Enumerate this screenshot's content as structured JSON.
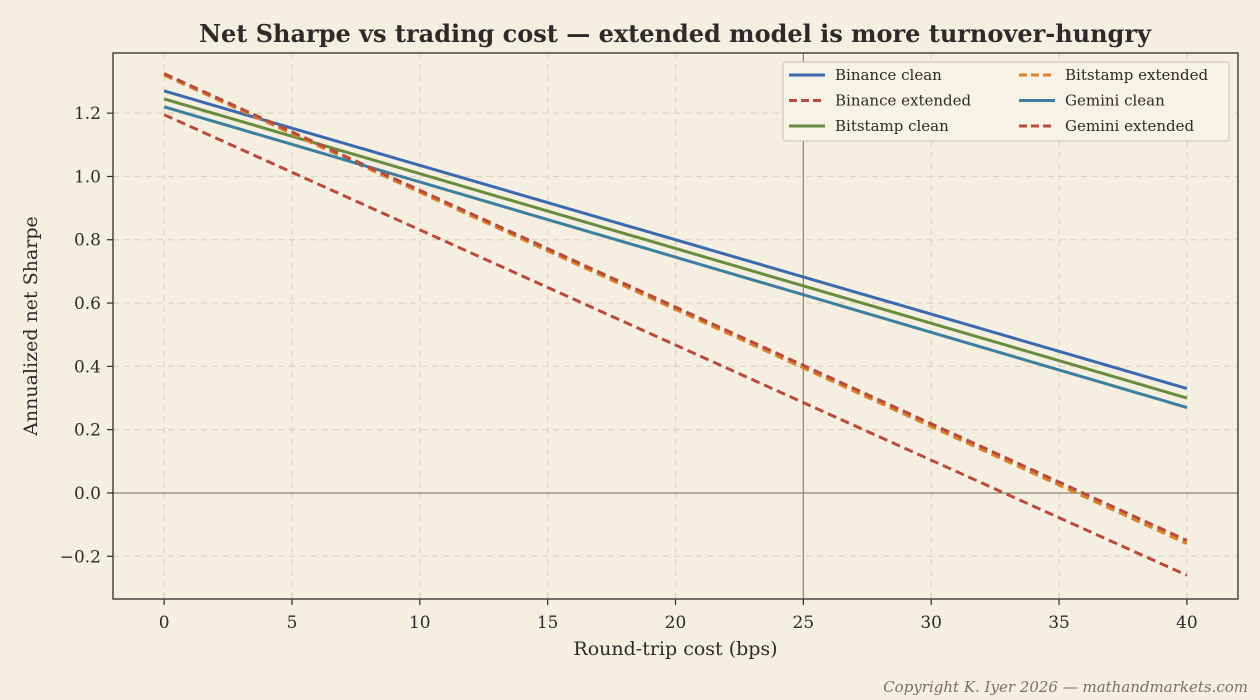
{
  "chart_data": {
    "type": "line",
    "title": "Net Sharpe vs trading cost — extended model is more turnover-hungry",
    "xlabel": "Round-trip cost (bps)",
    "ylabel": "Annualized net Sharpe",
    "xlim": [
      -2,
      42
    ],
    "ylim": [
      -0.335,
      1.39
    ],
    "xticks": [
      0,
      5,
      10,
      15,
      20,
      25,
      30,
      35,
      40
    ],
    "xtick_labels": [
      "0",
      "5",
      "10",
      "15",
      "20",
      "25",
      "30",
      "35",
      "40"
    ],
    "yticks": [
      -0.2,
      0.0,
      0.2,
      0.4,
      0.6,
      0.8,
      1.0,
      1.2
    ],
    "ytick_labels": [
      "−0.2",
      "0.0",
      "0.2",
      "0.4",
      "0.6",
      "0.8",
      "1.0",
      "1.2"
    ],
    "grid": true,
    "legend_position": "top-right",
    "reference_lines": {
      "horizontal_y": 0.0,
      "vertical_x": 25
    },
    "x": [
      0,
      40
    ],
    "series": [
      {
        "name": "Binance clean",
        "values": [
          1.27,
          0.33
        ],
        "color": "#3a6aad",
        "style": "solid"
      },
      {
        "name": "Binance extended",
        "values": [
          1.195,
          -0.26
        ],
        "color": "#b84c3c",
        "style": "dashed"
      },
      {
        "name": "Bitstamp clean",
        "values": [
          1.245,
          0.3
        ],
        "color": "#688c3e",
        "style": "solid"
      },
      {
        "name": "Bitstamp extended",
        "values": [
          1.32,
          -0.16
        ],
        "color": "#d9822b",
        "style": "dashed"
      },
      {
        "name": "Gemini clean",
        "values": [
          1.22,
          0.27
        ],
        "color": "#3c7f9e",
        "style": "solid"
      },
      {
        "name": "Gemini extended",
        "values": [
          1.325,
          -0.15
        ],
        "color": "#b84c3c",
        "style": "dashed"
      }
    ]
  },
  "copyright": "Copyright K. Iyer 2026 — mathandmarkets.com",
  "colors": {
    "background": "#f5efe2",
    "axes": "#2b2b2b",
    "grid": "#ddd3bd"
  }
}
